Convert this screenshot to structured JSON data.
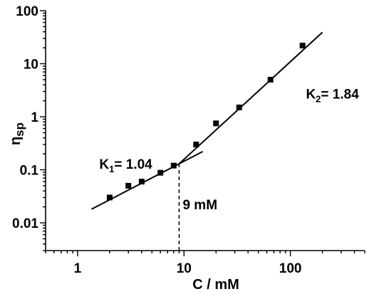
{
  "chart_data": {
    "type": "scatter",
    "xscale": "log",
    "yscale": "log",
    "xlim": [
      0.5,
      500
    ],
    "ylim": [
      0.003,
      100
    ],
    "xlabel": "C / mM",
    "ylabel_main": "η",
    "ylabel_sub": "sp",
    "x_ticks": [
      {
        "value": 1,
        "label": "1"
      },
      {
        "value": 10,
        "label": "10"
      },
      {
        "value": 100,
        "label": "100"
      }
    ],
    "y_ticks": [
      {
        "value": 0.01,
        "label": "0.01"
      },
      {
        "value": 0.1,
        "label": "0.1"
      },
      {
        "value": 1,
        "label": "1"
      },
      {
        "value": 10,
        "label": "10"
      },
      {
        "value": 100,
        "label": "100"
      }
    ],
    "points": [
      {
        "x": 2,
        "y": 0.03
      },
      {
        "x": 3,
        "y": 0.05
      },
      {
        "x": 4,
        "y": 0.06
      },
      {
        "x": 6,
        "y": 0.088
      },
      {
        "x": 8,
        "y": 0.12
      },
      {
        "x": 13,
        "y": 0.3
      },
      {
        "x": 20,
        "y": 0.75
      },
      {
        "x": 33,
        "y": 1.5
      },
      {
        "x": 65,
        "y": 5
      },
      {
        "x": 130,
        "y": 22
      }
    ],
    "fits": [
      {
        "x_start": 1.35,
        "x_end": 15,
        "slope": 1.04,
        "anchor_x": 9,
        "anchor_y": 0.13
      },
      {
        "x_start": 9,
        "x_end": 200,
        "slope": 1.84,
        "anchor_x": 9,
        "anchor_y": 0.13
      }
    ],
    "critical": {
      "x": 9,
      "y": 0.13,
      "label": "9 mM"
    },
    "annotations": [
      {
        "main": "K",
        "sub": "1",
        "rest": "= 1.04",
        "at_x": 1.6,
        "at_y": 0.105
      },
      {
        "main": "K",
        "sub": "2",
        "rest": "= 1.84",
        "at_x": 140,
        "at_y": 2.2
      }
    ]
  }
}
